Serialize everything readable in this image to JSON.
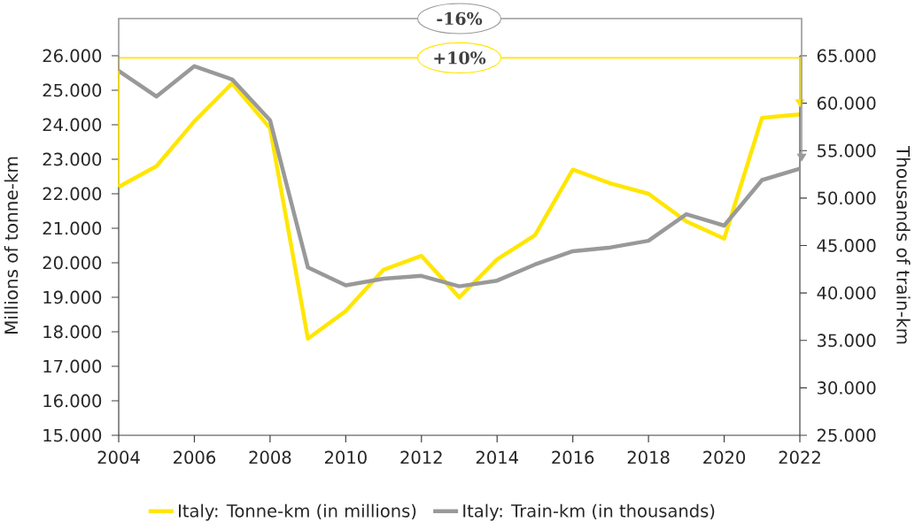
{
  "chart_data": {
    "type": "line",
    "x": [
      2004,
      2005,
      2006,
      2007,
      2008,
      2009,
      2010,
      2011,
      2012,
      2013,
      2014,
      2015,
      2016,
      2017,
      2018,
      2019,
      2020,
      2021,
      2022
    ],
    "xlim": [
      2004,
      2022
    ],
    "xticks": [
      2004,
      2006,
      2008,
      2010,
      2012,
      2014,
      2016,
      2018,
      2020,
      2022
    ],
    "ylim": [
      15000,
      26000
    ],
    "yticks": [
      {
        "value": 15000,
        "label": "15.000"
      },
      {
        "value": 16000,
        "label": "16.000"
      },
      {
        "value": 17000,
        "label": "17.000"
      },
      {
        "value": 18000,
        "label": "18.000"
      },
      {
        "value": 19000,
        "label": "19.000"
      },
      {
        "value": 20000,
        "label": "20.000"
      },
      {
        "value": 21000,
        "label": "21.000"
      },
      {
        "value": 22000,
        "label": "22.000"
      },
      {
        "value": 23000,
        "label": "23.000"
      },
      {
        "value": 24000,
        "label": "24.000"
      },
      {
        "value": 25000,
        "label": "25.000"
      },
      {
        "value": 26000,
        "label": "26.000"
      }
    ],
    "y2lim": [
      25000,
      65000
    ],
    "y2ticks": [
      {
        "value": 25000,
        "label": "25.000"
      },
      {
        "value": 30000,
        "label": "30.000"
      },
      {
        "value": 35000,
        "label": "35.000"
      },
      {
        "value": 40000,
        "label": "40.000"
      },
      {
        "value": 45000,
        "label": "45.000"
      },
      {
        "value": 50000,
        "label": "50.000"
      },
      {
        "value": 55000,
        "label": "55.000"
      },
      {
        "value": 60000,
        "label": "60.000"
      },
      {
        "value": 65000,
        "label": "65.000"
      }
    ],
    "ylabel": "Millions of tonne-km",
    "y2label": "Thousands of train-km",
    "series": [
      {
        "name": "Italy: Tonne-km (in millions)",
        "color": "#ffe600",
        "values": [
          22200,
          22800,
          24100,
          25200,
          23900,
          17800,
          18600,
          19800,
          20200,
          19000,
          20100,
          20800,
          22700,
          22300,
          22000,
          21200,
          20700,
          24200,
          24300
        ]
      },
      {
        "name": "Italy: Train-km (in thousands)",
        "color": "#999999",
        "axis": "y2",
        "values": [
          63400,
          60700,
          63900,
          62500,
          58200,
          42700,
          40800,
          41500,
          41800,
          40700,
          41300,
          43000,
          44400,
          44800,
          45500,
          48300,
          47100,
          51900,
          53100
        ]
      }
    ],
    "annotations": [
      "+10%",
      "-16%"
    ],
    "legend": "bottom",
    "grid": false,
    "marker": "none",
    "line_style": "solid"
  }
}
